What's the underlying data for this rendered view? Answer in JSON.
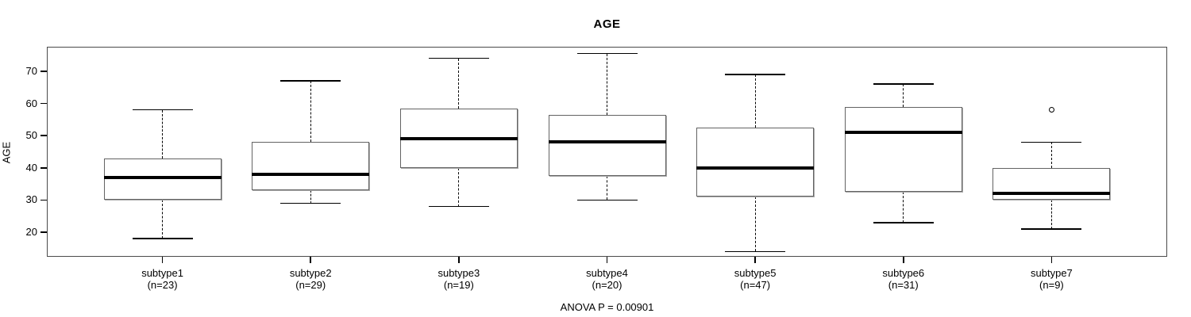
{
  "chart_data": {
    "type": "box",
    "title": "AGE",
    "ylabel": "AGE",
    "xlabel": "",
    "annotation": "ANOVA P = 0.00901",
    "y_ticks": [
      20,
      30,
      40,
      50,
      60,
      70
    ],
    "ylim": [
      12.4,
      77.6
    ],
    "grid": false,
    "legend": "none",
    "categories": [
      "subtype1",
      "subtype2",
      "subtype3",
      "subtype4",
      "subtype5",
      "subtype6",
      "subtype7"
    ],
    "series": [
      {
        "label": "subtype1",
        "count_label": "(n=23)",
        "n": 23,
        "whisker_low": 18,
        "q1": 30,
        "median": 37,
        "q3": 43,
        "whisker_high": 58,
        "outliers": []
      },
      {
        "label": "subtype2",
        "count_label": "(n=29)",
        "n": 29,
        "whisker_low": 29,
        "q1": 33,
        "median": 38,
        "q3": 48,
        "whisker_high": 67,
        "outliers": []
      },
      {
        "label": "subtype3",
        "count_label": "(n=19)",
        "n": 19,
        "whisker_low": 28,
        "q1": 40,
        "median": 49,
        "q3": 58.5,
        "whisker_high": 74,
        "outliers": []
      },
      {
        "label": "subtype4",
        "count_label": "(n=20)",
        "n": 20,
        "whisker_low": 30,
        "q1": 37.5,
        "median": 48,
        "q3": 56.5,
        "whisker_high": 75.5,
        "outliers": []
      },
      {
        "label": "subtype5",
        "count_label": "(n=47)",
        "n": 47,
        "whisker_low": 14,
        "q1": 31,
        "median": 40,
        "q3": 52.5,
        "whisker_high": 69,
        "outliers": []
      },
      {
        "label": "subtype6",
        "count_label": "(n=31)",
        "n": 31,
        "whisker_low": 23,
        "q1": 32.5,
        "median": 51,
        "q3": 59,
        "whisker_high": 66,
        "outliers": []
      },
      {
        "label": "subtype7",
        "count_label": "(n=9)",
        "n": 9,
        "whisker_low": 21,
        "q1": 30,
        "median": 32,
        "q3": 40,
        "whisker_high": 48,
        "outliers": [
          58
        ]
      }
    ],
    "colors": {
      "stroke": "#000000",
      "box_border": "#636363",
      "fill": "#ffffff",
      "frame": "#4a4a4a"
    }
  }
}
